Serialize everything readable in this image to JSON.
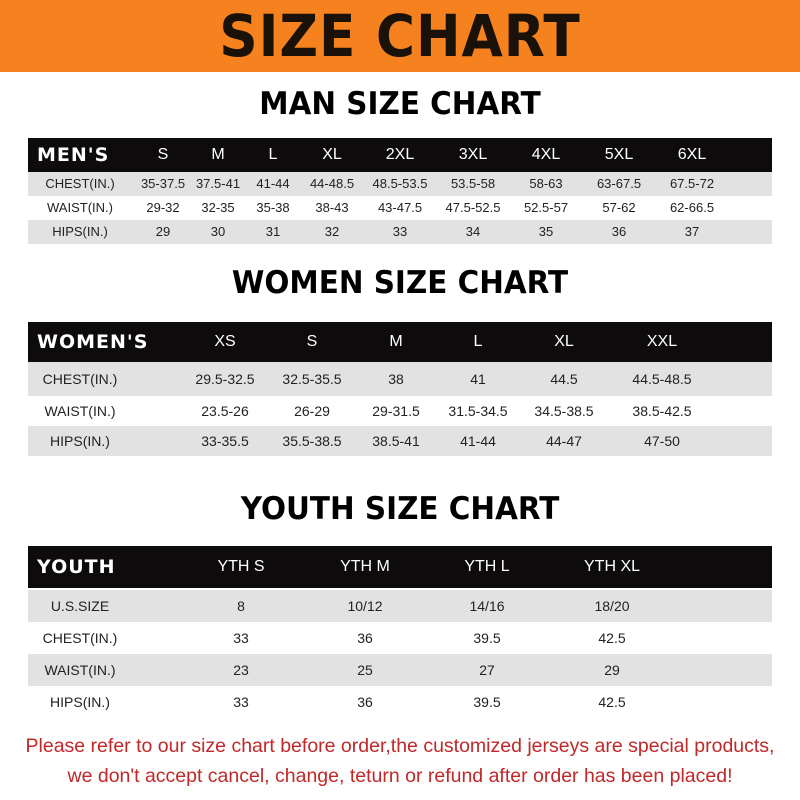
{
  "banner": {
    "title": "SIZE CHART",
    "color": "#f5821f"
  },
  "men": {
    "title": "MAN SIZE CHART",
    "headers": [
      "MEN'S",
      "S",
      "M",
      "L",
      "XL",
      "2XL",
      "3XL",
      "4XL",
      "5XL",
      "6XL"
    ],
    "rows": [
      [
        "CHEST(IN.)",
        "35-37.5",
        "37.5-41",
        "41-44",
        "44-48.5",
        "48.5-53.5",
        "53.5-58",
        "58-63",
        "63-67.5",
        "67.5-72"
      ],
      [
        "WAIST(IN.)",
        "29-32",
        "32-35",
        "35-38",
        "38-43",
        "43-47.5",
        "47.5-52.5",
        "52.5-57",
        "57-62",
        "62-66.5"
      ],
      [
        "HIPS(IN.)",
        "29",
        "30",
        "31",
        "32",
        "33",
        "34",
        "35",
        "36",
        "37"
      ]
    ]
  },
  "women": {
    "title": "WOMEN SIZE CHART",
    "headers": [
      "WOMEN'S",
      "XS",
      "S",
      "M",
      "L",
      "XL",
      "XXL"
    ],
    "rows": [
      [
        "CHEST(IN.)",
        "29.5-32.5",
        "32.5-35.5",
        "38",
        "41",
        "44.5",
        "44.5-48.5"
      ],
      [
        "WAIST(IN.)",
        "23.5-26",
        "26-29",
        "29-31.5",
        "31.5-34.5",
        "34.5-38.5",
        "38.5-42.5"
      ],
      [
        "HIPS(IN.)",
        "33-35.5",
        "35.5-38.5",
        "38.5-41",
        "41-44",
        "44-47",
        "47-50"
      ]
    ]
  },
  "youth": {
    "title": "YOUTH SIZE CHART",
    "headers": [
      "YOUTH",
      "YTH S",
      "YTH M",
      "YTH L",
      "YTH XL"
    ],
    "rows": [
      [
        "U.S.SIZE",
        "8",
        "10/12",
        "14/16",
        "18/20"
      ],
      [
        "CHEST(IN.)",
        "33",
        "36",
        "39.5",
        "42.5"
      ],
      [
        "WAIST(IN.)",
        "23",
        "25",
        "27",
        "29"
      ],
      [
        "HIPS(IN.)",
        "33",
        "36",
        "39.5",
        "42.5"
      ]
    ]
  },
  "notice": {
    "line1": "Please refer to our size chart before order,the customized jerseys are special products,",
    "line2": "we don't accept cancel, change, teturn or refund after order has been placed!",
    "color": "#c0282a"
  }
}
